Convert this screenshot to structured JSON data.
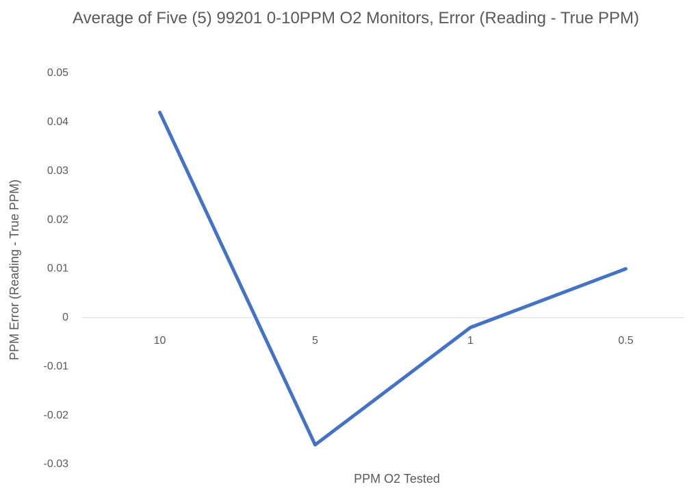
{
  "chart_data": {
    "type": "line",
    "title": "Average of Five (5) 99201 0-10PPM O2 Monitors, Error (Reading - True PPM)",
    "x_label": "PPM O2 Tested",
    "y_label": "PPM Error (Reading - True PPM)",
    "categories": [
      "10",
      "5",
      "1",
      "0.5"
    ],
    "values": [
      0.042,
      -0.026,
      -0.002,
      0.01
    ],
    "color": "#4472c4",
    "ylim": [
      -0.03,
      0.05
    ],
    "yticks": [
      -0.03,
      -0.02,
      -0.01,
      0,
      0.01,
      0.02,
      0.03,
      0.04,
      0.05
    ],
    "grid": false
  }
}
